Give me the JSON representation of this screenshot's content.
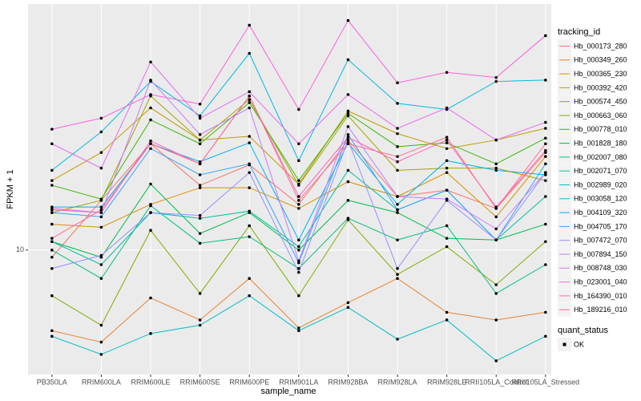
{
  "chart_data": {
    "type": "line",
    "x_label": "sample_name",
    "y_label": "FPKM + 1",
    "ylog": true,
    "grid": true,
    "categories": [
      "PB350LA",
      "RRIM600LA",
      "RRIM600LE",
      "RRIM600SE",
      "RRIM600PE",
      "RRIM901LA",
      "RRIM928BA",
      "RRIM928LA",
      "RRIM928LE",
      "RRII105LA_Control",
      "RRII105LA_Stressed"
    ],
    "ylim": [
      4.9,
      41
    ],
    "yticks": [
      10
    ],
    "legend_title": "tracking_id",
    "series": [
      {
        "name": "Hb_000173_280",
        "color": "#F8766D",
        "values": [
          9.6,
          13.3,
          18.4,
          14.5,
          16.3,
          13.0,
          18.8,
          13.6,
          14.1,
          12.7,
          17.5
        ]
      },
      {
        "name": "Hb_000349_260",
        "color": "#EA8331",
        "values": [
          6.3,
          5.9,
          7.6,
          6.7,
          8.5,
          6.4,
          7.4,
          8.5,
          7.0,
          6.7,
          7.0
        ]
      },
      {
        "name": "Hb_000365_230",
        "color": "#D89000",
        "values": [
          11.6,
          11.4,
          13.0,
          14.3,
          14.3,
          12.7,
          14.8,
          13.6,
          15.6,
          12.1,
          17.1
        ]
      },
      {
        "name": "Hb_000392_420",
        "color": "#C09B00",
        "values": [
          14.9,
          17.5,
          22.6,
          18.8,
          19.2,
          14.6,
          22.2,
          19.5,
          17.9,
          18.8,
          20.1
        ]
      },
      {
        "name": "Hb_000574_450",
        "color": "#A3A500",
        "values": [
          12.4,
          13.3,
          24.2,
          18.8,
          23.7,
          14.5,
          21.6,
          15.8,
          16.0,
          16.0,
          14.9
        ]
      },
      {
        "name": "Hb_000663_060",
        "color": "#7CAE00",
        "values": [
          7.7,
          6.5,
          11.2,
          7.8,
          11.5,
          7.7,
          11.9,
          8.7,
          10.2,
          8.2,
          10.5
        ]
      },
      {
        "name": "Hb_000778_010",
        "color": "#39B600",
        "values": [
          14.5,
          13.4,
          21.1,
          18.4,
          23.3,
          14.9,
          21.9,
          18.1,
          18.5,
          16.4,
          19.0
        ]
      },
      {
        "name": "Hb_001828_180",
        "color": "#00BB4E",
        "values": [
          10.5,
          9.6,
          14.6,
          11.0,
          12.4,
          10.0,
          13.3,
          12.4,
          10.7,
          10.6,
          11.6
        ]
      },
      {
        "name": "Hb_002007_080",
        "color": "#00BF7D",
        "values": [
          10.0,
          8.5,
          12.9,
          10.4,
          10.8,
          9.0,
          12.0,
          10.6,
          11.5,
          7.8,
          9.2
        ]
      },
      {
        "name": "Hb_002071_070",
        "color": "#00C1A3",
        "values": [
          10.5,
          9.2,
          12.4,
          12.0,
          12.5,
          10.2,
          15.8,
          12.6,
          14.1,
          10.6,
          13.6
        ]
      },
      {
        "name": "Hb_002989_020",
        "color": "#00BFC4",
        "values": [
          6.1,
          5.5,
          6.2,
          6.5,
          7.7,
          6.3,
          7.2,
          6.0,
          6.7,
          5.3,
          6.1
        ]
      },
      {
        "name": "Hb_003058_120",
        "color": "#00BAE0",
        "values": [
          15.8,
          19.7,
          26.3,
          21.6,
          30.9,
          16.7,
          29.8,
          23.2,
          22.4,
          26.3,
          26.5
        ]
      },
      {
        "name": "Hb_004109_320",
        "color": "#00B0F6",
        "values": [
          12.8,
          12.8,
          18.4,
          16.6,
          18.5,
          10.6,
          18.5,
          13.0,
          16.7,
          15.8,
          15.4
        ]
      },
      {
        "name": "Hb_004705_170",
        "color": "#35A2FF",
        "values": [
          12.4,
          12.1,
          17.9,
          15.4,
          16.4,
          9.3,
          19.4,
          12.6,
          14.1,
          10.6,
          16.4
        ]
      },
      {
        "name": "Hb_007472_070",
        "color": "#9590FF",
        "values": [
          9.0,
          9.7,
          12.4,
          12.2,
          15.6,
          8.8,
          18.8,
          9.0,
          13.3,
          10.6,
          15.6
        ]
      },
      {
        "name": "Hb_007894_150",
        "color": "#C77CFF",
        "values": [
          12.7,
          12.4,
          26.5,
          19.4,
          22.6,
          9.4,
          20.3,
          13.6,
          13.4,
          11.3,
          15.6
        ]
      },
      {
        "name": "Hb_008748_030",
        "color": "#E76BF3",
        "values": [
          18.4,
          16.0,
          29.4,
          21.3,
          24.8,
          18.4,
          24.4,
          20.1,
          22.6,
          18.8,
          20.8
        ]
      },
      {
        "name": "Hb_023001_040",
        "color": "#FA62DB",
        "values": [
          20.0,
          21.3,
          24.4,
          23.1,
          36.3,
          22.4,
          37.3,
          26.1,
          27.7,
          26.9,
          34.2
        ]
      },
      {
        "name": "Hb_164390_010",
        "color": "#FF62BC",
        "values": [
          12.6,
          12.4,
          18.7,
          16.4,
          24.2,
          13.6,
          19.1,
          16.6,
          18.8,
          12.8,
          17.7
        ]
      },
      {
        "name": "Hb_189216_010",
        "color": "#FF6C91",
        "values": [
          10.7,
          12.6,
          18.4,
          16.4,
          24.2,
          13.3,
          18.4,
          17.1,
          19.1,
          12.7,
          18.4
        ]
      }
    ],
    "quant_status": {
      "title": "quant_status",
      "labels": [
        "OK"
      ]
    }
  }
}
